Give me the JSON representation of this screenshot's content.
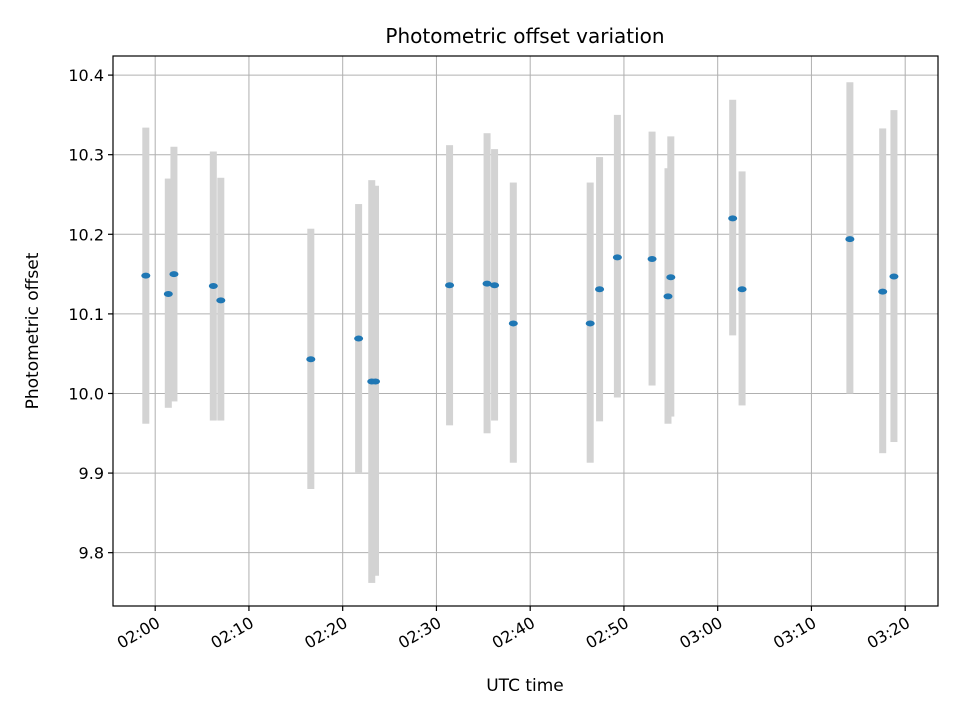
{
  "chart_data": {
    "type": "scatter",
    "title": "Photometric offset variation",
    "xlabel": "UTC time",
    "ylabel": "Photometric offset",
    "xlim": [
      "01:55:30",
      "03:23:30"
    ],
    "ylim": [
      9.733,
      10.424
    ],
    "grid": true,
    "x_ticks": [
      "02:00",
      "02:10",
      "02:20",
      "02:30",
      "02:40",
      "02:50",
      "03:00",
      "03:10",
      "03:20"
    ],
    "y_ticks": [
      "9.8",
      "9.9",
      "10.0",
      "10.1",
      "10.2",
      "10.3",
      "10.4"
    ],
    "colors": {
      "point": "#1f77b4",
      "errorbar": "#d3d3d3",
      "grid": "#b0b0b0"
    },
    "series": [
      {
        "points": [
          {
            "t": "01:59:00",
            "y": 10.148,
            "lo": 9.962,
            "hi": 10.334
          },
          {
            "t": "02:01:24",
            "y": 10.125,
            "lo": 9.982,
            "hi": 10.27
          },
          {
            "t": "02:02:00",
            "y": 10.15,
            "lo": 9.99,
            "hi": 10.31
          },
          {
            "t": "02:06:12",
            "y": 10.135,
            "lo": 9.966,
            "hi": 10.304
          },
          {
            "t": "02:07:00",
            "y": 10.117,
            "lo": 9.966,
            "hi": 10.271
          },
          {
            "t": "02:16:36",
            "y": 10.043,
            "lo": 9.88,
            "hi": 10.207
          },
          {
            "t": "02:21:42",
            "y": 10.069,
            "lo": 9.9,
            "hi": 10.238
          },
          {
            "t": "02:23:06",
            "y": 10.015,
            "lo": 9.762,
            "hi": 10.268
          },
          {
            "t": "02:23:30",
            "y": 10.015,
            "lo": 9.771,
            "hi": 10.261
          },
          {
            "t": "02:31:24",
            "y": 10.136,
            "lo": 9.96,
            "hi": 10.312
          },
          {
            "t": "02:35:24",
            "y": 10.138,
            "lo": 9.95,
            "hi": 10.327
          },
          {
            "t": "02:36:12",
            "y": 10.136,
            "lo": 9.966,
            "hi": 10.307
          },
          {
            "t": "02:38:12",
            "y": 10.088,
            "lo": 9.913,
            "hi": 10.265
          },
          {
            "t": "02:46:24",
            "y": 10.088,
            "lo": 9.913,
            "hi": 10.265
          },
          {
            "t": "02:47:24",
            "y": 10.131,
            "lo": 9.965,
            "hi": 10.297
          },
          {
            "t": "02:49:18",
            "y": 10.171,
            "lo": 9.995,
            "hi": 10.35
          },
          {
            "t": "02:53:00",
            "y": 10.169,
            "lo": 10.01,
            "hi": 10.329
          },
          {
            "t": "02:54:42",
            "y": 10.122,
            "lo": 9.962,
            "hi": 10.283
          },
          {
            "t": "02:55:00",
            "y": 10.146,
            "lo": 9.971,
            "hi": 10.323
          },
          {
            "t": "03:01:36",
            "y": 10.22,
            "lo": 10.073,
            "hi": 10.369
          },
          {
            "t": "03:02:36",
            "y": 10.131,
            "lo": 9.985,
            "hi": 10.279
          },
          {
            "t": "03:14:06",
            "y": 10.194,
            "lo": 10.0,
            "hi": 10.391
          },
          {
            "t": "03:17:36",
            "y": 10.128,
            "lo": 9.925,
            "hi": 10.333
          },
          {
            "t": "03:18:48",
            "y": 10.147,
            "lo": 9.939,
            "hi": 10.356
          }
        ]
      }
    ]
  }
}
